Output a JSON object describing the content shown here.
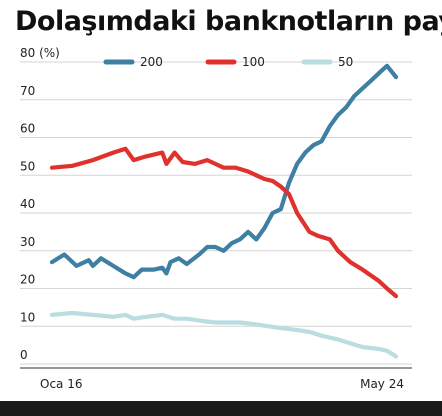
{
  "chart_data": {
    "type": "line",
    "title": "Dolaşımdaki banknotların payı",
    "ylabel_tick": "80 (%)",
    "ylim": [
      0,
      80
    ],
    "yticks": [
      0,
      10,
      20,
      30,
      40,
      50,
      60,
      70
    ],
    "xlim": [
      "2016-01",
      "2024-05"
    ],
    "xtick_labels": [
      "Oca 16",
      "May 24"
    ],
    "grid": "horizontal",
    "legend_position": "top",
    "series": [
      {
        "name": "200",
        "color": "#3e7fa3",
        "x": [
          0,
          0.3,
          0.6,
          0.9,
          1.0,
          1.2,
          1.5,
          1.8,
          2.0,
          2.2,
          2.5,
          2.7,
          2.8,
          2.9,
          3.1,
          3.3,
          3.6,
          3.8,
          4.0,
          4.2,
          4.4,
          4.6,
          4.8,
          5.0,
          5.2,
          5.4,
          5.6,
          5.8,
          6.0,
          6.2,
          6.4,
          6.6,
          6.8,
          7.0,
          7.2,
          7.4,
          7.6,
          7.8,
          8.0,
          8.2,
          8.42
        ],
        "y": [
          27,
          29,
          26,
          27.5,
          26,
          28,
          26,
          24,
          23,
          25,
          25,
          25.5,
          24,
          27,
          28,
          26.5,
          29,
          31,
          31,
          30,
          32,
          33,
          35,
          33,
          36,
          40,
          41,
          48,
          53,
          56,
          58,
          59,
          63,
          66,
          68,
          71,
          73,
          75,
          77,
          79,
          76
        ]
      },
      {
        "name": "100",
        "color": "#e0312c",
        "x": [
          0,
          0.5,
          1.0,
          1.5,
          1.8,
          2.0,
          2.3,
          2.7,
          2.8,
          3.0,
          3.2,
          3.5,
          3.8,
          4.0,
          4.2,
          4.5,
          4.8,
          5.0,
          5.2,
          5.4,
          5.6,
          5.8,
          6.0,
          6.3,
          6.5,
          6.8,
          7.0,
          7.3,
          7.6,
          8.0,
          8.2,
          8.42
        ],
        "y": [
          52,
          52.5,
          54,
          56,
          57,
          54,
          55,
          56,
          53,
          56,
          53.5,
          53,
          54,
          53,
          52,
          52,
          51,
          50,
          49,
          48.5,
          47,
          45,
          40,
          35,
          34,
          33,
          30,
          27,
          25,
          22,
          20,
          18
        ]
      },
      {
        "name": "50",
        "color": "#b9dde0",
        "x": [
          0,
          0.5,
          1.0,
          1.5,
          1.8,
          2.0,
          2.3,
          2.7,
          3.0,
          3.3,
          3.6,
          4.0,
          4.3,
          4.6,
          5.0,
          5.3,
          5.6,
          6.0,
          6.3,
          6.6,
          7.0,
          7.3,
          7.6,
          8.0,
          8.2,
          8.42
        ],
        "y": [
          13,
          13.5,
          13,
          12.5,
          13,
          12,
          12.5,
          13,
          12,
          12,
          11.5,
          11,
          11,
          11,
          10.5,
          10,
          9.5,
          9,
          8.5,
          7.5,
          6.5,
          5.5,
          4.5,
          4,
          3.5,
          2
        ]
      }
    ]
  }
}
